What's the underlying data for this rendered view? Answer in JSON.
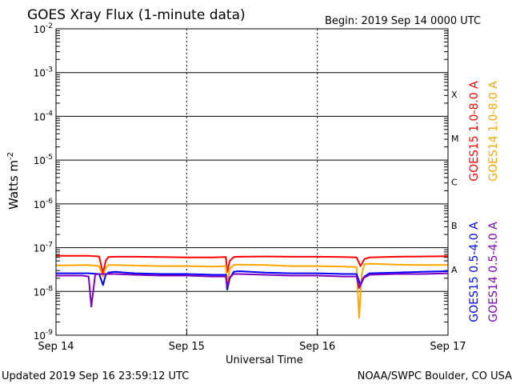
{
  "chart_data": {
    "type": "line",
    "title": "GOES Xray Flux (1-minute data)",
    "begin_label": "Begin:  2019 Sep 14 0000 UTC",
    "xlabel": "Universal Time",
    "ylabel": "Watts m",
    "ylabel_exponent": "-2",
    "y_scale": "log",
    "ylim": [
      1e-09,
      0.01
    ],
    "y_ticks": [
      {
        "value": 0.01,
        "base": "10",
        "exp": "-2"
      },
      {
        "value": 0.001,
        "base": "10",
        "exp": "-3"
      },
      {
        "value": 0.0001,
        "base": "10",
        "exp": "-4"
      },
      {
        "value": 1e-05,
        "base": "10",
        "exp": "-5"
      },
      {
        "value": 1e-06,
        "base": "10",
        "exp": "-6"
      },
      {
        "value": 1e-07,
        "base": "10",
        "exp": "-7"
      },
      {
        "value": 1e-08,
        "base": "10",
        "exp": "-8"
      },
      {
        "value": 1e-09,
        "base": "10",
        "exp": "-9"
      }
    ],
    "xlim": [
      0,
      3
    ],
    "x_ticks": [
      {
        "value": 0,
        "label": "Sep 14"
      },
      {
        "value": 1,
        "label": "Sep 15"
      },
      {
        "value": 2,
        "label": "Sep 16"
      },
      {
        "value": 3,
        "label": "Sep 17"
      }
    ],
    "flare_classes": [
      {
        "label": "X",
        "value": 0.0001
      },
      {
        "label": "M",
        "value": 1e-05
      },
      {
        "label": "C",
        "value": 1e-06
      },
      {
        "label": "B",
        "value": 1e-07
      },
      {
        "label": "A",
        "value": 1e-08
      }
    ],
    "grid": true,
    "series": [
      {
        "name": "GOES15 1.0-8.0 A",
        "color": "#ff0000",
        "x": [
          0.0,
          0.25,
          0.33,
          0.36,
          0.38,
          0.4,
          0.45,
          0.6,
          0.8,
          1.0,
          1.2,
          1.3,
          1.31,
          1.33,
          1.36,
          1.4,
          1.6,
          1.8,
          2.0,
          2.2,
          2.3,
          2.33,
          2.36,
          2.4,
          2.6,
          2.8,
          3.0
        ],
        "y": [
          6.5e-08,
          6.5e-08,
          6.3e-08,
          2.6e-08,
          5e-08,
          6.1e-08,
          6.2e-08,
          6.2e-08,
          6.1e-08,
          6e-08,
          6e-08,
          6.1e-08,
          2.8e-08,
          5e-08,
          6.1e-08,
          6.2e-08,
          6.3e-08,
          6.2e-08,
          6.2e-08,
          6.1e-08,
          6e-08,
          3.8e-08,
          5.5e-08,
          6e-08,
          6.2e-08,
          6.3e-08,
          6.4e-08
        ]
      },
      {
        "name": "GOES14 1.0-8.0 A",
        "color": "#ffa500",
        "x": [
          0.0,
          0.25,
          0.33,
          0.36,
          0.38,
          0.4,
          0.45,
          0.6,
          0.8,
          1.0,
          1.2,
          1.3,
          1.31,
          1.33,
          1.36,
          1.4,
          1.6,
          1.8,
          2.0,
          2.2,
          2.3,
          2.32,
          2.34,
          2.36,
          2.4,
          2.6,
          2.8,
          3.0
        ],
        "y": [
          3.9e-08,
          4e-08,
          3.8e-08,
          2.2e-08,
          3.5e-08,
          4e-08,
          4e-08,
          3.9e-08,
          3.8e-08,
          3.8e-08,
          3.7e-08,
          3.8e-08,
          1.5e-08,
          3.3e-08,
          4e-08,
          4.1e-08,
          4e-08,
          3.8e-08,
          3.8e-08,
          3.7e-08,
          3.6e-08,
          2.5e-09,
          2.5e-08,
          4.2e-08,
          4.3e-08,
          4.1e-08,
          4e-08,
          4e-08
        ]
      },
      {
        "name": "GOES15 0.5-4.0 A",
        "color": "#0000ff",
        "x": [
          0.0,
          0.25,
          0.33,
          0.36,
          0.38,
          0.4,
          0.45,
          0.6,
          0.8,
          1.0,
          1.2,
          1.3,
          1.31,
          1.33,
          1.36,
          1.4,
          1.6,
          1.8,
          2.0,
          2.2,
          2.3,
          2.33,
          2.36,
          2.4,
          2.6,
          2.8,
          3.0
        ],
        "y": [
          2.6e-08,
          2.6e-08,
          2.5e-08,
          1.4e-08,
          2.4e-08,
          2.7e-08,
          2.8e-08,
          2.6e-08,
          2.5e-08,
          2.5e-08,
          2.4e-08,
          2.4e-08,
          1.1e-08,
          2e-08,
          2.8e-08,
          2.9e-08,
          2.7e-08,
          2.6e-08,
          2.6e-08,
          2.5e-08,
          2.5e-08,
          1.4e-08,
          2.2e-08,
          2.6e-08,
          2.7e-08,
          2.8e-08,
          2.9e-08
        ]
      },
      {
        "name": "GOES14 0.5-4.0 A",
        "color": "#8000c0",
        "x": [
          0.0,
          0.2,
          0.25,
          0.27,
          0.3,
          0.32,
          0.45,
          0.6,
          0.8,
          1.0,
          1.2,
          1.3,
          1.31,
          1.33,
          1.36,
          1.4,
          1.6,
          1.8,
          2.0,
          2.2,
          2.3,
          2.32,
          2.35,
          2.4,
          2.6,
          2.8,
          3.0
        ],
        "y": [
          2.3e-08,
          2.3e-08,
          2.2e-08,
          4.5e-09,
          2.4e-08,
          2.5e-08,
          2.5e-08,
          2.4e-08,
          2.3e-08,
          2.3e-08,
          2.2e-08,
          2.2e-08,
          1.3e-08,
          2.1e-08,
          2.5e-08,
          2.5e-08,
          2.4e-08,
          2.3e-08,
          2.3e-08,
          2.2e-08,
          2.2e-08,
          1.2e-08,
          2e-08,
          2.4e-08,
          2.5e-08,
          2.5e-08,
          2.6e-08
        ]
      }
    ],
    "footer_left": "Updated 2019 Sep 16 23:59:12 UTC",
    "footer_right": "NOAA/SWPC Boulder, CO USA"
  }
}
